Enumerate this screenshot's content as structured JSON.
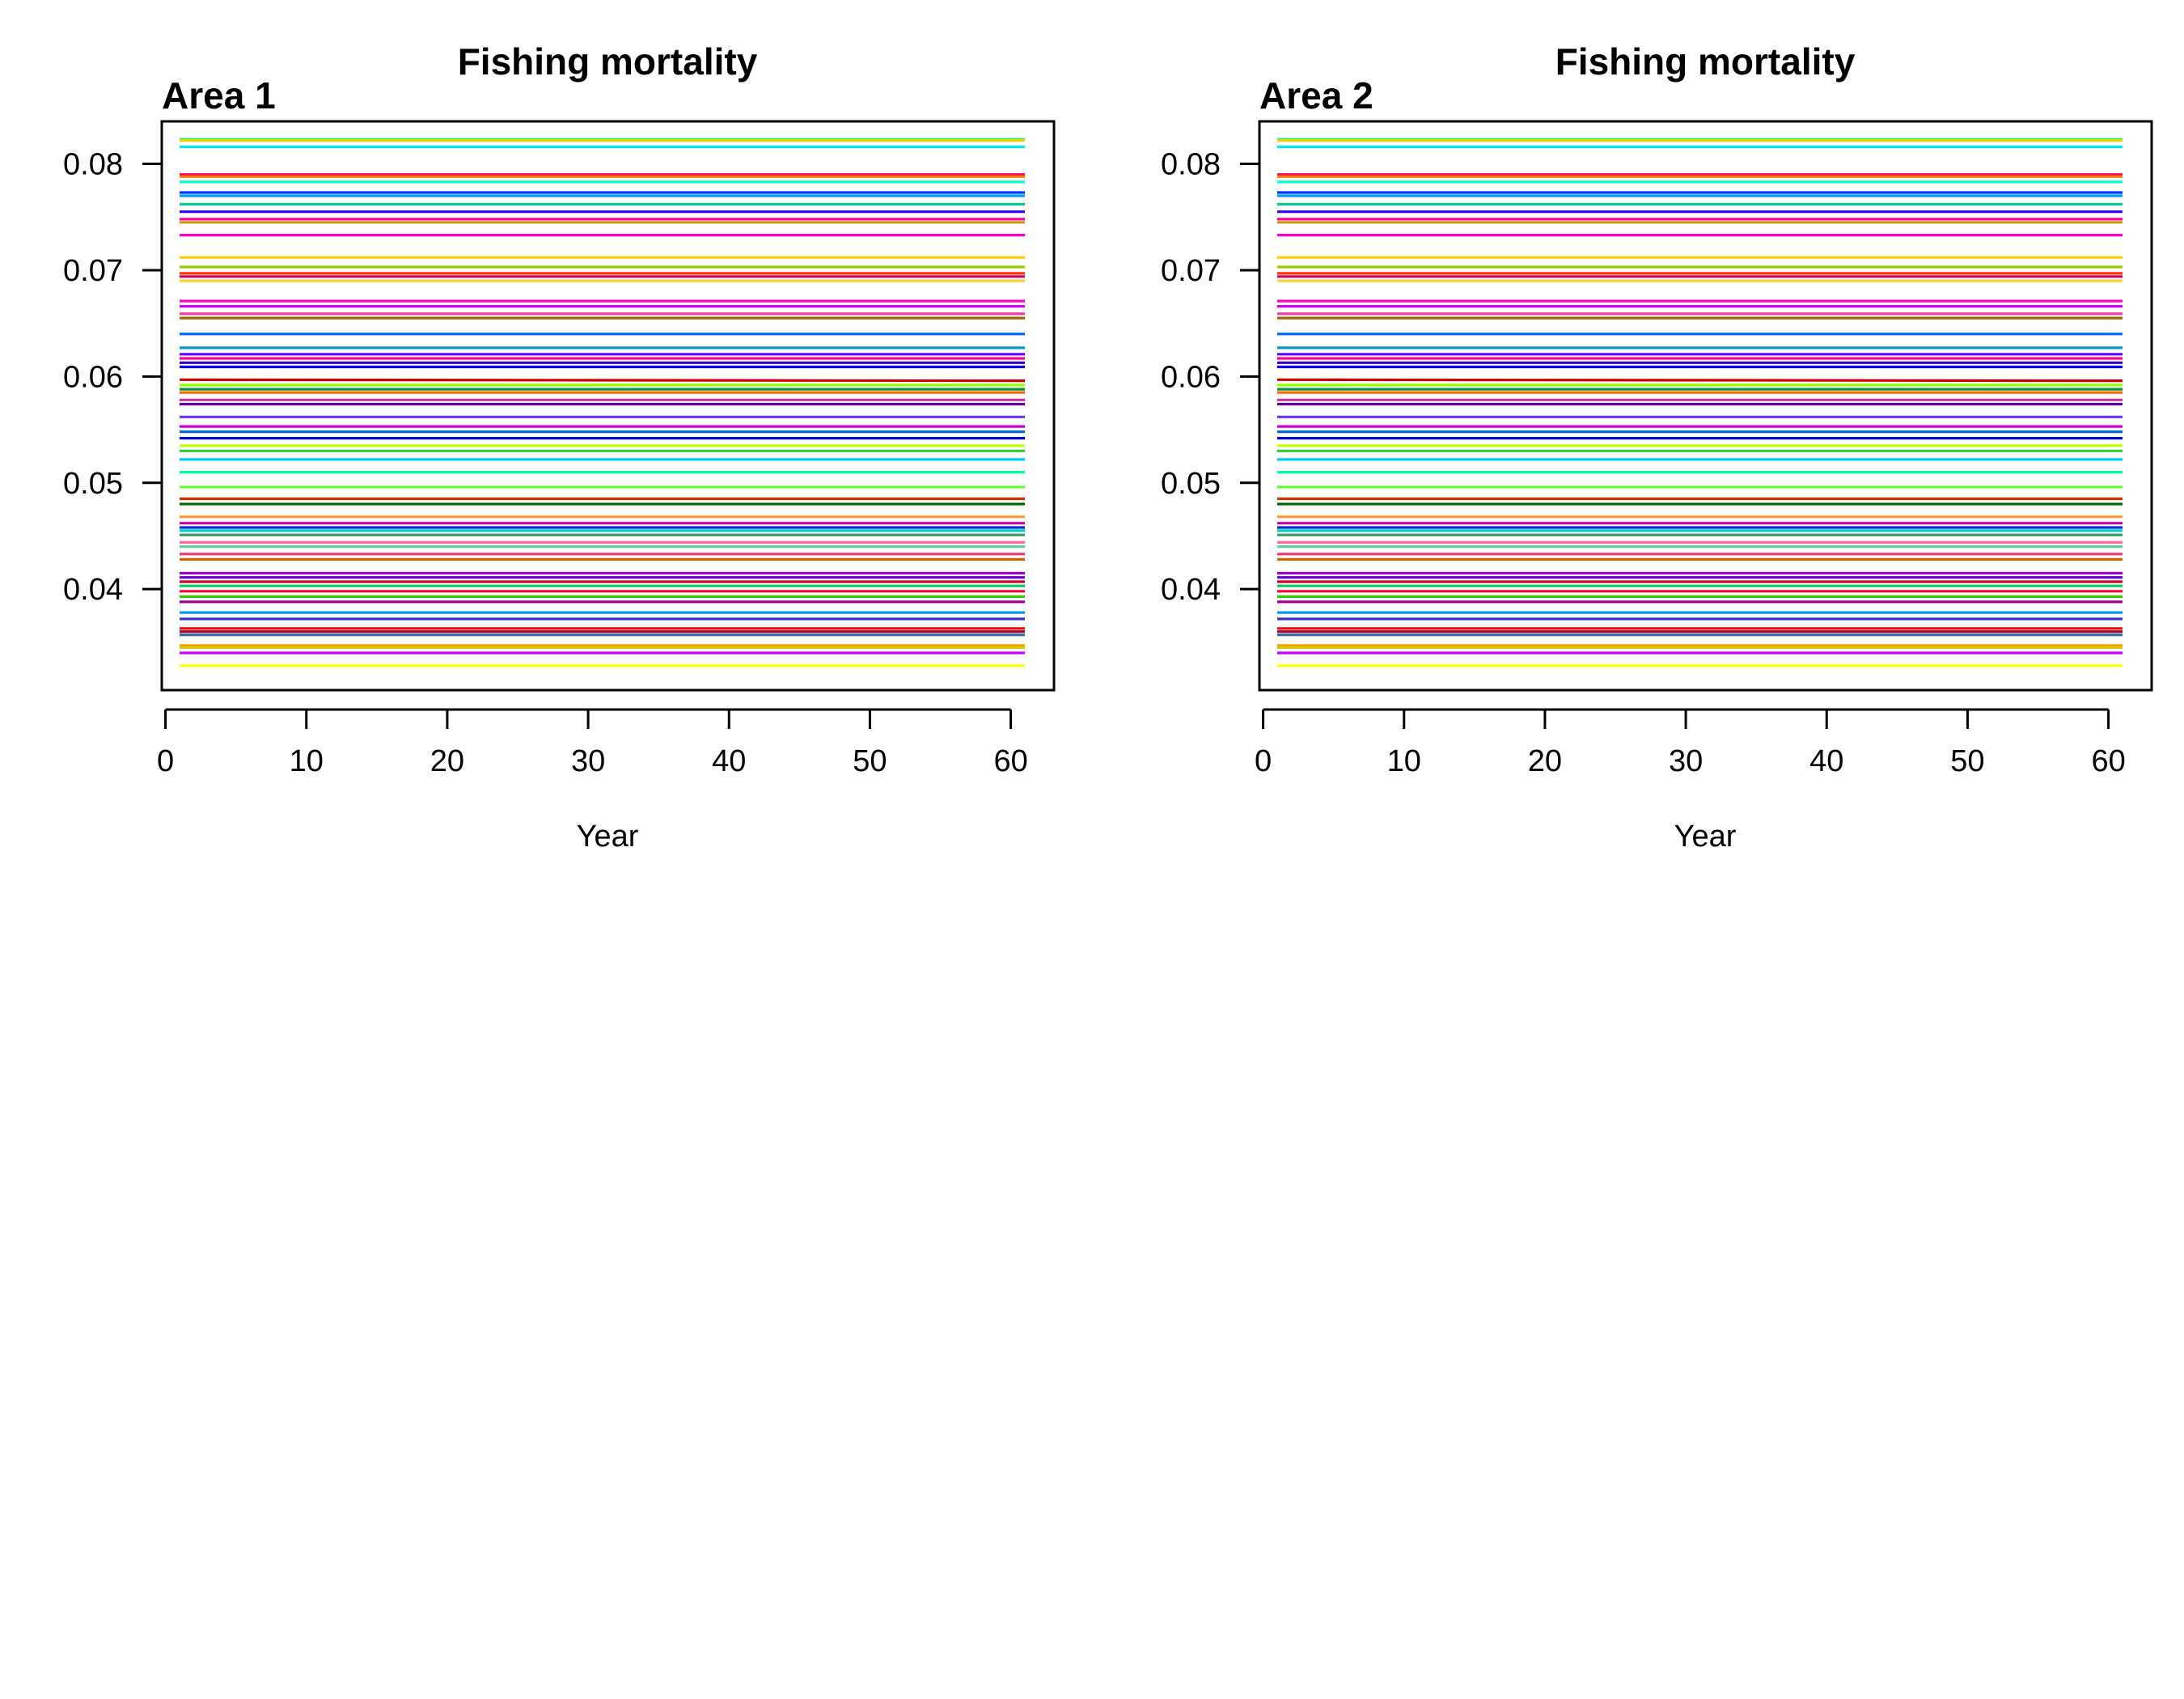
{
  "chart_data": [
    {
      "type": "line",
      "title": "Fishing mortality",
      "subtitle": "Area 1",
      "xlabel": "Year",
      "ylabel": "",
      "xlim": [
        1,
        61
      ],
      "ylim": [
        0.0305,
        0.084
      ],
      "xticks": [
        "0",
        "10",
        "20",
        "30",
        "40",
        "50",
        "60"
      ],
      "yticks": [
        "0.04",
        "0.05",
        "0.06",
        "0.07",
        "0.08"
      ],
      "legend": "none",
      "grid": false,
      "series": [
        {
          "color": "#00FF66",
          "values": [
            0.0823,
            0.0823
          ]
        },
        {
          "color": "#FFCC00",
          "values": [
            0.0822,
            0.0822
          ]
        },
        {
          "color": "#00E5FF",
          "values": [
            0.0816,
            0.0816
          ]
        },
        {
          "color": "#FF0066",
          "values": [
            0.079,
            0.079
          ]
        },
        {
          "color": "#FF8000",
          "values": [
            0.0788,
            0.0788
          ]
        },
        {
          "color": "#00FFCC",
          "values": [
            0.0783,
            0.0783
          ]
        },
        {
          "color": "#0033FF",
          "values": [
            0.0773,
            0.0773
          ]
        },
        {
          "color": "#0099FF",
          "values": [
            0.077,
            0.077
          ]
        },
        {
          "color": "#00CC99",
          "values": [
            0.0762,
            0.0762
          ]
        },
        {
          "color": "#3300FF",
          "values": [
            0.0755,
            0.0755
          ]
        },
        {
          "color": "#FF0099",
          "values": [
            0.0748,
            0.0748
          ]
        },
        {
          "color": "#CC9900",
          "values": [
            0.0745,
            0.0745
          ]
        },
        {
          "color": "#FF00CC",
          "values": [
            0.0733,
            0.0733
          ]
        },
        {
          "color": "#FFCC00",
          "values": [
            0.0712,
            0.0712
          ]
        },
        {
          "color": "#99CC00",
          "values": [
            0.0703,
            0.0703
          ]
        },
        {
          "color": "#FF3300",
          "values": [
            0.0697,
            0.0697
          ]
        },
        {
          "color": "#CC0066",
          "values": [
            0.0694,
            0.0694
          ]
        },
        {
          "color": "#FFCC33",
          "values": [
            0.069,
            0.069
          ]
        },
        {
          "color": "#FF00CC",
          "values": [
            0.0671,
            0.0671
          ]
        },
        {
          "color": "#CC00FF",
          "values": [
            0.0666,
            0.0666
          ]
        },
        {
          "color": "#FF3399",
          "values": [
            0.0659,
            0.0659
          ]
        },
        {
          "color": "#996600",
          "values": [
            0.0655,
            0.0655
          ]
        },
        {
          "color": "#0066FF",
          "values": [
            0.064,
            0.064
          ]
        },
        {
          "color": "#0099CC",
          "values": [
            0.0627,
            0.0627
          ]
        },
        {
          "color": "#6600FF",
          "values": [
            0.0621,
            0.0621
          ]
        },
        {
          "color": "#FF0099",
          "values": [
            0.0617,
            0.0617
          ]
        },
        {
          "color": "#3300CC",
          "values": [
            0.0613,
            0.0613
          ]
        },
        {
          "color": "#0000FF",
          "values": [
            0.0609,
            0.0609
          ]
        },
        {
          "color": "#CC0000",
          "values": [
            0.0597,
            0.0596
          ]
        },
        {
          "color": "#99FF00",
          "values": [
            0.0592,
            0.0592
          ]
        },
        {
          "color": "#009933",
          "values": [
            0.0588,
            0.0588
          ]
        },
        {
          "color": "#FF6600",
          "values": [
            0.0585,
            0.0585
          ]
        },
        {
          "color": "#CC3399",
          "values": [
            0.0578,
            0.0578
          ]
        },
        {
          "color": "#660099",
          "values": [
            0.0574,
            0.0574
          ]
        },
        {
          "color": "#6633FF",
          "values": [
            0.0562,
            0.0562
          ]
        },
        {
          "color": "#CC00CC",
          "values": [
            0.0553,
            0.0553
          ]
        },
        {
          "color": "#0066CC",
          "values": [
            0.0548,
            0.0548
          ]
        },
        {
          "color": "#0000CC",
          "values": [
            0.0542,
            0.0542
          ]
        },
        {
          "color": "#CCFF00",
          "values": [
            0.0535,
            0.0535
          ]
        },
        {
          "color": "#33CC33",
          "values": [
            0.053,
            0.053
          ]
        },
        {
          "color": "#00CCFF",
          "values": [
            0.0522,
            0.0522
          ]
        },
        {
          "color": "#00FF99",
          "values": [
            0.051,
            0.051
          ]
        },
        {
          "color": "#66FF33",
          "values": [
            0.0496,
            0.0496
          ]
        },
        {
          "color": "#CC3300",
          "values": [
            0.0485,
            0.0485
          ]
        },
        {
          "color": "#006600",
          "values": [
            0.048,
            0.048
          ]
        },
        {
          "color": "#FF9933",
          "values": [
            0.0468,
            0.0468
          ]
        },
        {
          "color": "#CC0099",
          "values": [
            0.0462,
            0.0462
          ]
        },
        {
          "color": "#0033CC",
          "values": [
            0.0458,
            0.0458
          ]
        },
        {
          "color": "#00CCCC",
          "values": [
            0.0455,
            0.0455
          ]
        },
        {
          "color": "#339966",
          "values": [
            0.0451,
            0.0451
          ]
        },
        {
          "color": "#FF6699",
          "values": [
            0.0444,
            0.0444
          ]
        },
        {
          "color": "#66CC99",
          "values": [
            0.044,
            0.044
          ]
        },
        {
          "color": "#FF3366",
          "values": [
            0.0433,
            0.0433
          ]
        },
        {
          "color": "#CC6600",
          "values": [
            0.0428,
            0.0428
          ]
        },
        {
          "color": "#9900CC",
          "values": [
            0.0415,
            0.0415
          ]
        },
        {
          "color": "#6600CC",
          "values": [
            0.0411,
            0.0411
          ]
        },
        {
          "color": "#CC0033",
          "values": [
            0.0407,
            0.0407
          ]
        },
        {
          "color": "#00CC66",
          "values": [
            0.0403,
            0.0403
          ]
        },
        {
          "color": "#FF0033",
          "values": [
            0.0398,
            0.0398
          ]
        },
        {
          "color": "#33CC00",
          "values": [
            0.0393,
            0.0393
          ]
        },
        {
          "color": "#990099",
          "values": [
            0.0388,
            0.0388
          ]
        },
        {
          "color": "#0099FF",
          "values": [
            0.0378,
            0.0378
          ]
        },
        {
          "color": "#3333CC",
          "values": [
            0.0372,
            0.0372
          ]
        },
        {
          "color": "#FF0000",
          "values": [
            0.0363,
            0.0363
          ]
        },
        {
          "color": "#990033",
          "values": [
            0.036,
            0.036
          ]
        },
        {
          "color": "#336699",
          "values": [
            0.0357,
            0.0357
          ]
        },
        {
          "color": "#FF9900",
          "values": [
            0.0347,
            0.0347
          ]
        },
        {
          "color": "#CCCC00",
          "values": [
            0.0345,
            0.0345
          ]
        },
        {
          "color": "#CC00FF",
          "values": [
            0.034,
            0.034
          ]
        },
        {
          "color": "#FFFF00",
          "values": [
            0.0328,
            0.0328
          ]
        }
      ]
    },
    {
      "type": "line",
      "title": "Fishing mortality",
      "subtitle": "Area 2",
      "xlabel": "Year",
      "ylabel": "",
      "xlim": [
        1,
        61
      ],
      "ylim": [
        0.0305,
        0.084
      ],
      "xticks": [
        "0",
        "10",
        "20",
        "30",
        "40",
        "50",
        "60"
      ],
      "yticks": [
        "0.04",
        "0.05",
        "0.06",
        "0.07",
        "0.08"
      ],
      "legend": "none",
      "grid": false,
      "series": [
        {
          "color": "#00FF66",
          "values": [
            0.0823,
            0.0823
          ]
        },
        {
          "color": "#FFCC00",
          "values": [
            0.0822,
            0.0822
          ]
        },
        {
          "color": "#00E5FF",
          "values": [
            0.0816,
            0.0816
          ]
        },
        {
          "color": "#FF0066",
          "values": [
            0.079,
            0.079
          ]
        },
        {
          "color": "#FF8000",
          "values": [
            0.0788,
            0.0788
          ]
        },
        {
          "color": "#00FFCC",
          "values": [
            0.0783,
            0.0783
          ]
        },
        {
          "color": "#0033FF",
          "values": [
            0.0773,
            0.0773
          ]
        },
        {
          "color": "#0099FF",
          "values": [
            0.077,
            0.077
          ]
        },
        {
          "color": "#00CC99",
          "values": [
            0.0762,
            0.0762
          ]
        },
        {
          "color": "#3300FF",
          "values": [
            0.0755,
            0.0755
          ]
        },
        {
          "color": "#FF0099",
          "values": [
            0.0748,
            0.0748
          ]
        },
        {
          "color": "#CC9900",
          "values": [
            0.0745,
            0.0745
          ]
        },
        {
          "color": "#FF00CC",
          "values": [
            0.0733,
            0.0733
          ]
        },
        {
          "color": "#FFCC00",
          "values": [
            0.0712,
            0.0712
          ]
        },
        {
          "color": "#99CC00",
          "values": [
            0.0703,
            0.0703
          ]
        },
        {
          "color": "#FF3300",
          "values": [
            0.0697,
            0.0697
          ]
        },
        {
          "color": "#CC0066",
          "values": [
            0.0694,
            0.0694
          ]
        },
        {
          "color": "#FFCC33",
          "values": [
            0.069,
            0.069
          ]
        },
        {
          "color": "#FF00CC",
          "values": [
            0.0671,
            0.0671
          ]
        },
        {
          "color": "#CC00FF",
          "values": [
            0.0666,
            0.0666
          ]
        },
        {
          "color": "#FF3399",
          "values": [
            0.0659,
            0.0659
          ]
        },
        {
          "color": "#996600",
          "values": [
            0.0655,
            0.0655
          ]
        },
        {
          "color": "#0066FF",
          "values": [
            0.064,
            0.064
          ]
        },
        {
          "color": "#0099CC",
          "values": [
            0.0627,
            0.0627
          ]
        },
        {
          "color": "#6600FF",
          "values": [
            0.0621,
            0.0621
          ]
        },
        {
          "color": "#FF0099",
          "values": [
            0.0617,
            0.0617
          ]
        },
        {
          "color": "#3300CC",
          "values": [
            0.0613,
            0.0613
          ]
        },
        {
          "color": "#0000FF",
          "values": [
            0.0609,
            0.0609
          ]
        },
        {
          "color": "#CC0000",
          "values": [
            0.0597,
            0.0596
          ]
        },
        {
          "color": "#99FF00",
          "values": [
            0.0592,
            0.0592
          ]
        },
        {
          "color": "#009933",
          "values": [
            0.0588,
            0.0588
          ]
        },
        {
          "color": "#FF6600",
          "values": [
            0.0585,
            0.0585
          ]
        },
        {
          "color": "#CC3399",
          "values": [
            0.0578,
            0.0578
          ]
        },
        {
          "color": "#660099",
          "values": [
            0.0574,
            0.0574
          ]
        },
        {
          "color": "#6633FF",
          "values": [
            0.0562,
            0.0562
          ]
        },
        {
          "color": "#CC00CC",
          "values": [
            0.0553,
            0.0553
          ]
        },
        {
          "color": "#0066CC",
          "values": [
            0.0548,
            0.0548
          ]
        },
        {
          "color": "#0000CC",
          "values": [
            0.0542,
            0.0542
          ]
        },
        {
          "color": "#CCFF00",
          "values": [
            0.0535,
            0.0535
          ]
        },
        {
          "color": "#33CC33",
          "values": [
            0.053,
            0.053
          ]
        },
        {
          "color": "#00CCFF",
          "values": [
            0.0522,
            0.0522
          ]
        },
        {
          "color": "#00FF99",
          "values": [
            0.051,
            0.051
          ]
        },
        {
          "color": "#66FF33",
          "values": [
            0.0496,
            0.0496
          ]
        },
        {
          "color": "#CC3300",
          "values": [
            0.0485,
            0.0485
          ]
        },
        {
          "color": "#006600",
          "values": [
            0.048,
            0.048
          ]
        },
        {
          "color": "#FF9933",
          "values": [
            0.0468,
            0.0468
          ]
        },
        {
          "color": "#CC0099",
          "values": [
            0.0462,
            0.0462
          ]
        },
        {
          "color": "#0033CC",
          "values": [
            0.0458,
            0.0458
          ]
        },
        {
          "color": "#00CCCC",
          "values": [
            0.0455,
            0.0455
          ]
        },
        {
          "color": "#339966",
          "values": [
            0.0451,
            0.0451
          ]
        },
        {
          "color": "#FF6699",
          "values": [
            0.0444,
            0.0444
          ]
        },
        {
          "color": "#66CC99",
          "values": [
            0.044,
            0.044
          ]
        },
        {
          "color": "#FF3366",
          "values": [
            0.0433,
            0.0433
          ]
        },
        {
          "color": "#CC6600",
          "values": [
            0.0428,
            0.0428
          ]
        },
        {
          "color": "#9900CC",
          "values": [
            0.0415,
            0.0415
          ]
        },
        {
          "color": "#6600CC",
          "values": [
            0.0411,
            0.0411
          ]
        },
        {
          "color": "#CC0033",
          "values": [
            0.0407,
            0.0407
          ]
        },
        {
          "color": "#00CC66",
          "values": [
            0.0403,
            0.0403
          ]
        },
        {
          "color": "#FF0033",
          "values": [
            0.0398,
            0.0398
          ]
        },
        {
          "color": "#33CC00",
          "values": [
            0.0393,
            0.0393
          ]
        },
        {
          "color": "#990099",
          "values": [
            0.0388,
            0.0388
          ]
        },
        {
          "color": "#0099FF",
          "values": [
            0.0378,
            0.0378
          ]
        },
        {
          "color": "#3333CC",
          "values": [
            0.0372,
            0.0372
          ]
        },
        {
          "color": "#FF0000",
          "values": [
            0.0363,
            0.0363
          ]
        },
        {
          "color": "#990033",
          "values": [
            0.036,
            0.036
          ]
        },
        {
          "color": "#336699",
          "values": [
            0.0357,
            0.0357
          ]
        },
        {
          "color": "#FF9900",
          "values": [
            0.0347,
            0.0347
          ]
        },
        {
          "color": "#CCCC00",
          "values": [
            0.0345,
            0.0345
          ]
        },
        {
          "color": "#CC00FF",
          "values": [
            0.034,
            0.034
          ]
        },
        {
          "color": "#FFFF00",
          "values": [
            0.0328,
            0.0328
          ]
        }
      ]
    }
  ]
}
